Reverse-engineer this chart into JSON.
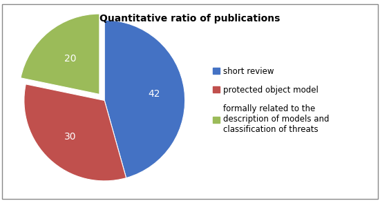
{
  "title": "Quantitative ratio of publications",
  "values": [
    42,
    30,
    20
  ],
  "autopct_labels": [
    "42",
    "30",
    "20"
  ],
  "colors": [
    "#4472C4",
    "#C0504D",
    "#9BBB59"
  ],
  "explode": [
    0,
    0,
    0.1
  ],
  "startangle": 90,
  "legend_labels": [
    "short review",
    "protected object model",
    "formally related to the\ndescription of models and\nclassification of threats"
  ],
  "legend_colors": [
    "#4472C4",
    "#C0504D",
    "#9BBB59"
  ],
  "title_fontsize": 10,
  "label_fontsize": 10,
  "background_color": "#ffffff",
  "border_color": "#888888"
}
